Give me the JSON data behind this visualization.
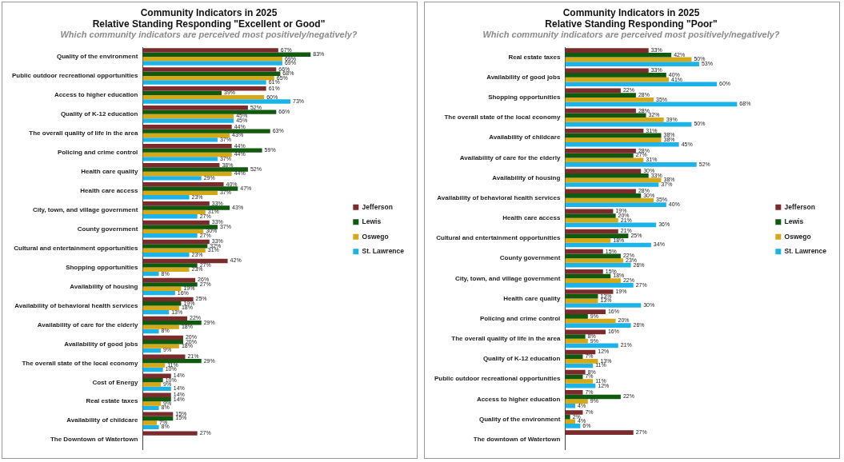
{
  "chart_data": [
    {
      "type": "bar",
      "orientation": "horizontal",
      "title": "Community Indicators in 2025\nRelative Standing Responding \"Excellent or Good\"",
      "subtitle": "Which community indicators are perceived most positively/negatively?",
      "legend": "right",
      "tick_labels": "y",
      "categories": [
        "Quality of the environment",
        "Public outdoor recreational opportunities",
        "Access to higher education",
        "Quality of K-12 education",
        "The overall quality of life in the area",
        "Policing and crime control",
        "Health care quality",
        "Health care access",
        "City, town, and village government",
        "County government",
        "Cultural and entertainment opportunities",
        "Shopping opportunities",
        "Availability of housing",
        "Availability of behavioral health services",
        "Availability of care for the elderly",
        "Availability of good jobs",
        "The overall state of the local economy",
        "Cost of Energy",
        "Real estate taxes",
        "Availability of childcare",
        "The Downtown of Watertown"
      ],
      "series": [
        {
          "name": "Jefferson",
          "color": "#7b2b2b",
          "values": [
            67,
            66,
            61,
            52,
            44,
            44,
            38,
            40,
            33,
            33,
            33,
            42,
            26,
            25,
            22,
            20,
            21,
            14,
            14,
            15,
            27
          ],
          "value_labels": [
            "67%",
            "66%",
            "61%",
            "52%",
            "44%",
            "44%",
            "38%",
            "40%",
            "33%",
            "33%",
            "33%",
            "42%",
            "26%",
            "25%",
            "22%",
            "20%",
            "21%",
            "14%",
            "14%",
            "15%",
            "27%"
          ]
        },
        {
          "name": "Lewis",
          "color": "#0f5a0f",
          "values": [
            83,
            68,
            39,
            66,
            63,
            59,
            52,
            47,
            43,
            37,
            32,
            27,
            27,
            19,
            29,
            20,
            29,
            10,
            14,
            15,
            null
          ],
          "value_labels": [
            "83%",
            "68%",
            "39%",
            "66%",
            "63%",
            "59%",
            "52%",
            "47%",
            "43%",
            "37%",
            "32%",
            "27%",
            "27%",
            "19%",
            "29%",
            "20%",
            "29%",
            "10%",
            "14%",
            "15%",
            null
          ]
        },
        {
          "name": "Oswego",
          "color": "#d4a817",
          "values": [
            69,
            65,
            60,
            45,
            43,
            44,
            44,
            37,
            31,
            30,
            31,
            23,
            19,
            18,
            18,
            18,
            11,
            9,
            9,
            7,
            null
          ],
          "value_labels": [
            "69%",
            "65%",
            "60%",
            "45%",
            "43%",
            "44%",
            "44%",
            "37%",
            "31%",
            "30%",
            "31%",
            "23%",
            "19%",
            "18%",
            "18%",
            "18%",
            "11%",
            "9%",
            "9%",
            "7%",
            null
          ]
        },
        {
          "name": "St. Lawrence",
          "color": "#1cb3e8",
          "values": [
            69,
            61,
            73,
            45,
            37,
            37,
            29,
            23,
            27,
            27,
            23,
            8,
            16,
            13,
            8,
            9,
            10,
            14,
            8,
            8,
            null
          ],
          "value_labels": [
            "69%",
            "61%",
            "73%",
            "45%",
            "37%",
            "37%",
            "29%",
            "23%",
            "27%",
            "27%",
            "23%",
            "8%",
            "16%",
            "13%",
            "8%",
            "9%",
            "10%",
            "14%",
            "8%",
            "8%",
            null
          ]
        }
      ]
    },
    {
      "type": "bar",
      "orientation": "horizontal",
      "title": "Community Indicators in 2025\nRelative Standing Responding \"Poor\"",
      "subtitle": "Which community indicators are perceived most positively/negatively?",
      "legend": "right",
      "tick_labels": "y",
      "categories": [
        "Real estate taxes",
        "Availability of good jobs",
        "Shopping opportunities",
        "The overall state of the local economy",
        "Availability of childcare",
        "Availability of care for the elderly",
        "Availability of housing",
        "Availability of behavioral health services",
        "Health care access",
        "Cultural and entertainment opportunities",
        "County government",
        "City, town, and village government",
        "Health care quality",
        "Policing and crime control",
        "The overall quality of life in the area",
        "Quality of K-12 education",
        "Public outdoor recreational opportunities",
        "Access to higher education",
        "Quality of the environment",
        "The downtown of Watertown"
      ],
      "series": [
        {
          "name": "Jefferson",
          "color": "#7b2b2b",
          "values": [
            33,
            33,
            22,
            28,
            31,
            28,
            30,
            28,
            19,
            21,
            15,
            15,
            19,
            16,
            16,
            12,
            8,
            7,
            7,
            27
          ],
          "value_labels": [
            "33%",
            "33%",
            "22%",
            "28%",
            "31%",
            "28%",
            "30%",
            "28%",
            "19%",
            "21%",
            "15%",
            "15%",
            "19%",
            "16%",
            "16%",
            "12%",
            "8%",
            "7%",
            "7%",
            "27%"
          ]
        },
        {
          "name": "Lewis",
          "color": "#0f5a0f",
          "values": [
            42,
            40,
            28,
            32,
            38,
            27,
            33,
            30,
            20,
            25,
            22,
            18,
            13,
            9,
            8,
            7,
            7,
            22,
            2,
            null
          ],
          "value_labels": [
            "42%",
            "40%",
            "28%",
            "32%",
            "38%",
            "27%",
            "33%",
            "30%",
            "20%",
            "25%",
            "22%",
            "18%",
            "13%",
            "9%",
            "8%",
            "7%",
            "7%",
            "22%",
            "2%",
            null
          ]
        },
        {
          "name": "Oswego",
          "color": "#d4a817",
          "values": [
            50,
            41,
            35,
            39,
            38,
            31,
            38,
            35,
            21,
            18,
            23,
            22,
            13,
            20,
            9,
            13,
            11,
            9,
            4,
            null
          ],
          "value_labels": [
            "50%",
            "41%",
            "35%",
            "39%",
            "38%",
            "31%",
            "38%",
            "35%",
            "21%",
            "18%",
            "23%",
            "22%",
            "13%",
            "20%",
            "9%",
            "13%",
            "11%",
            "9%",
            "4%",
            null
          ]
        },
        {
          "name": "St. Lawrence",
          "color": "#1cb3e8",
          "values": [
            53,
            60,
            68,
            50,
            45,
            52,
            37,
            40,
            36,
            34,
            26,
            27,
            30,
            26,
            21,
            11,
            12,
            4,
            6,
            null
          ],
          "value_labels": [
            "53%",
            "60%",
            "68%",
            "50%",
            "45%",
            "52%",
            "37%",
            "40%",
            "36%",
            "34%",
            "26%",
            "27%",
            "30%",
            "26%",
            "21%",
            "11%",
            "12%",
            "4%",
            "6%",
            null
          ]
        }
      ]
    }
  ]
}
